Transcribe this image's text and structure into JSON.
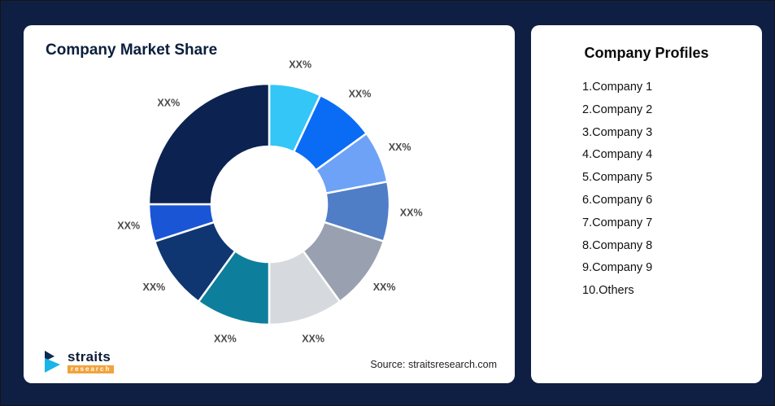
{
  "background_color": "#0f1f44",
  "chart_card": {
    "title": "Company Market Share",
    "source": "Source: straitsresearch.com"
  },
  "logo": {
    "text": "straits",
    "sub": "research"
  },
  "profiles_card": {
    "title": "Company Profiles",
    "items": [
      "1.Company 1",
      "2.Company 2",
      "3.Company 3",
      "4.Company 4",
      "5.Company 5",
      "6.Company 6",
      "7.Company 7",
      "8.Company 8",
      "9.Company 9",
      "10.Others"
    ]
  },
  "chart_data": {
    "type": "pie",
    "subtype": "donut",
    "title": "Company Market Share",
    "labels": [
      "Company 1",
      "Company 2",
      "Company 3",
      "Company 4",
      "Company 5",
      "Company 6",
      "Company 7",
      "Company 8",
      "Company 9",
      "Others"
    ],
    "slice_labels": [
      "XX%",
      "XX%",
      "XX%",
      "XX%",
      "XX%",
      "XX%",
      "XX%",
      "XX%",
      "XX%",
      "XX%"
    ],
    "values_pct_estimated": [
      7,
      8,
      7,
      8,
      10,
      10,
      10,
      10,
      5,
      25
    ],
    "colors": [
      "#33c6f7",
      "#0a6cf5",
      "#6da2f7",
      "#4f7ec7",
      "#99a1b0",
      "#d6dade",
      "#0d7f9c",
      "#103672",
      "#1a55d5",
      "#0c2351"
    ],
    "start_angle_deg": 0,
    "direction": "clockwise",
    "inner_radius_ratio": 0.48,
    "legend": "none",
    "note": "Slice values shown only as XX% placeholders; percentages estimated from arc angles"
  }
}
